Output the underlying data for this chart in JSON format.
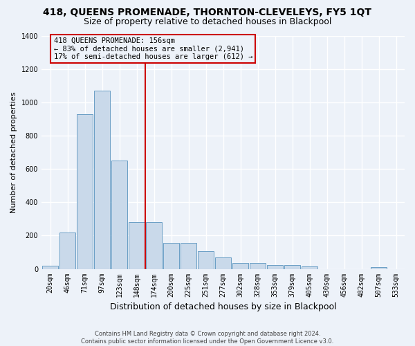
{
  "title": "418, QUEENS PROMENADE, THORNTON-CLEVELEYS, FY5 1QT",
  "subtitle": "Size of property relative to detached houses in Blackpool",
  "xlabel": "Distribution of detached houses by size in Blackpool",
  "ylabel": "Number of detached properties",
  "footer_line1": "Contains HM Land Registry data © Crown copyright and database right 2024.",
  "footer_line2": "Contains public sector information licensed under the Open Government Licence v3.0.",
  "bar_labels": [
    "20sqm",
    "46sqm",
    "71sqm",
    "97sqm",
    "123sqm",
    "148sqm",
    "174sqm",
    "200sqm",
    "225sqm",
    "251sqm",
    "277sqm",
    "302sqm",
    "328sqm",
    "353sqm",
    "379sqm",
    "405sqm",
    "430sqm",
    "456sqm",
    "482sqm",
    "507sqm",
    "533sqm"
  ],
  "bar_values": [
    20,
    220,
    930,
    1070,
    650,
    280,
    280,
    155,
    155,
    105,
    70,
    35,
    35,
    22,
    22,
    15,
    0,
    0,
    0,
    10,
    0
  ],
  "bar_color": "#c9d9ea",
  "bar_edge_color": "#6a9ec5",
  "vline_x": 5.5,
  "vline_color": "#cc0000",
  "annotation_text": "418 QUEENS PROMENADE: 156sqm\n← 83% of detached houses are smaller (2,941)\n17% of semi-detached houses are larger (612) →",
  "annotation_box_edgecolor": "#cc0000",
  "ylim": [
    0,
    1400
  ],
  "yticks": [
    0,
    200,
    400,
    600,
    800,
    1000,
    1200,
    1400
  ],
  "background_color": "#edf2f9",
  "grid_color": "#ffffff",
  "title_fontsize": 10,
  "subtitle_fontsize": 9,
  "ylabel_fontsize": 8,
  "xlabel_fontsize": 9,
  "tick_fontsize": 7,
  "footer_fontsize": 6,
  "annotation_fontsize": 7.5
}
